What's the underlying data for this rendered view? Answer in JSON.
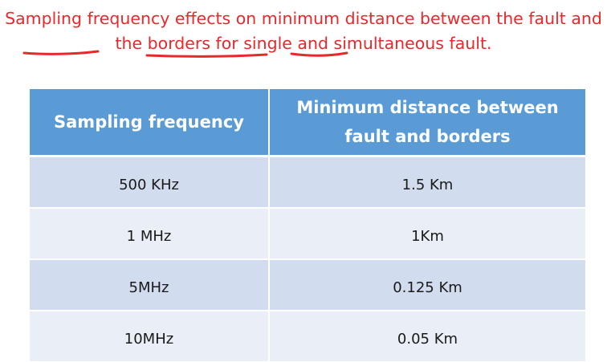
{
  "title": "Sampling frequency effects on minimum distance between the fault and the borders for single and simultaneous fault.",
  "table": {
    "headers": [
      "Sampling frequency",
      "Minimum distance between fault and borders"
    ],
    "rows": [
      [
        "500 KHz",
        "1.5 Km"
      ],
      [
        "1 MHz",
        "1Km"
      ],
      [
        "5MHz",
        "0.125 Km"
      ],
      [
        "10MHz",
        "0.05 Km"
      ]
    ]
  },
  "colors": {
    "title": "#e8282b",
    "header_bg": "#5b9bd5",
    "row_dark": "#d1dcee",
    "row_light": "#e9eef7",
    "ink": "#e8282b"
  }
}
